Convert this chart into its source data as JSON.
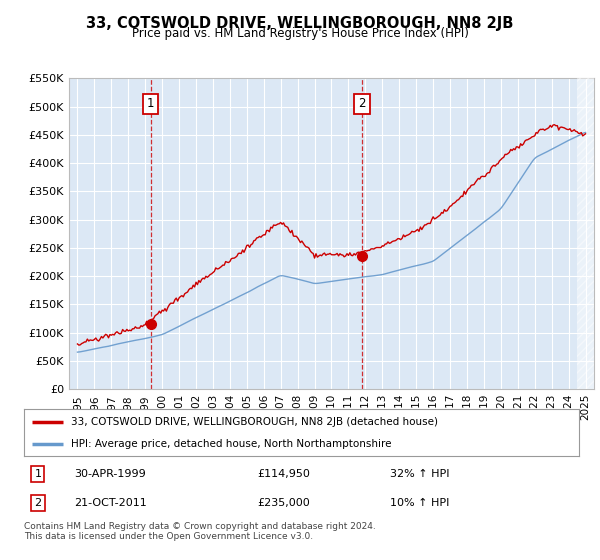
{
  "title": "33, COTSWOLD DRIVE, WELLINGBOROUGH, NN8 2JB",
  "subtitle": "Price paid vs. HM Land Registry's House Price Index (HPI)",
  "legend_label_red": "33, COTSWOLD DRIVE, WELLINGBOROUGH, NN8 2JB (detached house)",
  "legend_label_blue": "HPI: Average price, detached house, North Northamptonshire",
  "annotation1_label": "1",
  "annotation1_date": "30-APR-1999",
  "annotation1_price": "£114,950",
  "annotation1_hpi": "32% ↑ HPI",
  "annotation2_label": "2",
  "annotation2_date": "21-OCT-2011",
  "annotation2_price": "£235,000",
  "annotation2_hpi": "10% ↑ HPI",
  "footer": "Contains HM Land Registry data © Crown copyright and database right 2024.\nThis data is licensed under the Open Government Licence v3.0.",
  "red_color": "#cc0000",
  "blue_color": "#6699cc",
  "bg_color": "#dce8f5",
  "grid_color": "#ffffff",
  "ylim_min": 0,
  "ylim_max": 550000,
  "yticks": [
    0,
    50000,
    100000,
    150000,
    200000,
    250000,
    300000,
    350000,
    400000,
    450000,
    500000,
    550000
  ],
  "ytick_labels": [
    "£0",
    "£50K",
    "£100K",
    "£150K",
    "£200K",
    "£250K",
    "£300K",
    "£350K",
    "£400K",
    "£450K",
    "£500K",
    "£550K"
  ],
  "sale1_year": 1999.33,
  "sale1_price": 114950,
  "sale2_year": 2011.8,
  "sale2_price": 235000,
  "xlim_min": 1994.5,
  "xlim_max": 2025.5
}
